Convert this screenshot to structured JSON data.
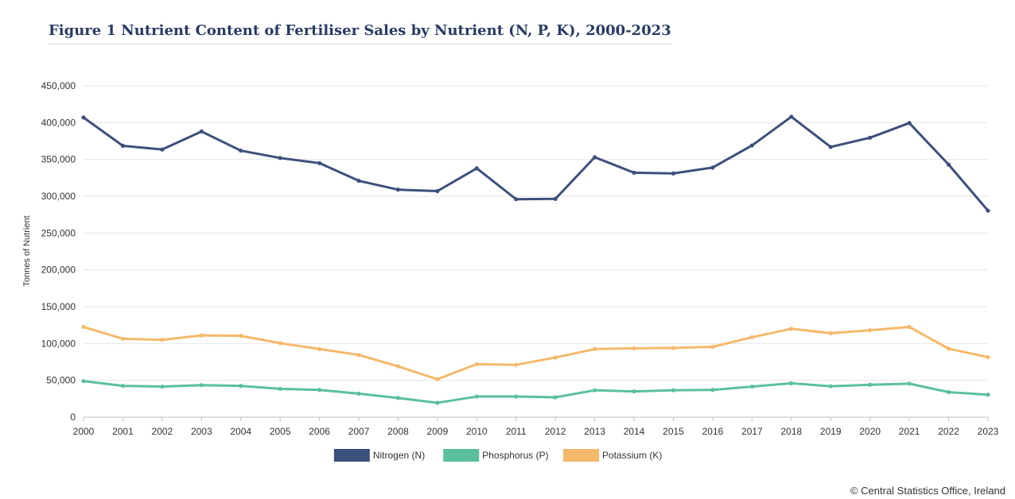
{
  "title": "Figure 1 Nutrient Content of Fertiliser Sales by Nutrient (N, P, K), 2000-2023",
  "copyright": "© Central Statistics Office, Ireland",
  "chart_data": {
    "type": "line",
    "title": "Figure 1 Nutrient Content of Fertiliser Sales by Nutrient (N, P, K), 2000-2023",
    "xlabel": "",
    "ylabel": "Tonnes of Nutrient",
    "ylim": [
      0,
      450000
    ],
    "yticks": [
      0,
      50000,
      100000,
      150000,
      200000,
      250000,
      300000,
      350000,
      400000,
      450000
    ],
    "ytick_labels": [
      "0",
      "50,000",
      "100,000",
      "150,000",
      "200,000",
      "250,000",
      "300,000",
      "350,000",
      "400,000",
      "450,000"
    ],
    "grid": true,
    "legend_position": "bottom",
    "categories": [
      "2000",
      "2001",
      "2002",
      "2003",
      "2004",
      "2005",
      "2006",
      "2007",
      "2008",
      "2009",
      "2010",
      "2011",
      "2012",
      "2013",
      "2014",
      "2015",
      "2016",
      "2017",
      "2018",
      "2019",
      "2020",
      "2021",
      "2022",
      "2023"
    ],
    "series": [
      {
        "name": "Nitrogen (N)",
        "color": "#3d4f7c",
        "values": [
          407000,
          368500,
          363500,
          388000,
          362000,
          352000,
          345000,
          321000,
          309000,
          307000,
          338000,
          296000,
          296500,
          353000,
          332000,
          331000,
          339000,
          369000,
          408000,
          367000,
          379500,
          399500,
          343000,
          280500
        ]
      },
      {
        "name": "Phosphorus (P)",
        "color": "#5bbf9f",
        "values": [
          49000,
          42500,
          41500,
          43500,
          42500,
          38500,
          37000,
          32000,
          26000,
          19500,
          28000,
          28000,
          27000,
          36500,
          35000,
          36500,
          37000,
          41500,
          46000,
          42000,
          44000,
          45500,
          34000,
          30500
        ]
      },
      {
        "name": "Potassium (K)",
        "color": "#f5b96b",
        "values": [
          122500,
          106500,
          105000,
          111000,
          110500,
          100500,
          92500,
          84500,
          69000,
          51500,
          72000,
          71000,
          81000,
          92500,
          93500,
          94000,
          95500,
          108500,
          120000,
          114000,
          118000,
          122500,
          93000,
          81500
        ]
      }
    ]
  }
}
